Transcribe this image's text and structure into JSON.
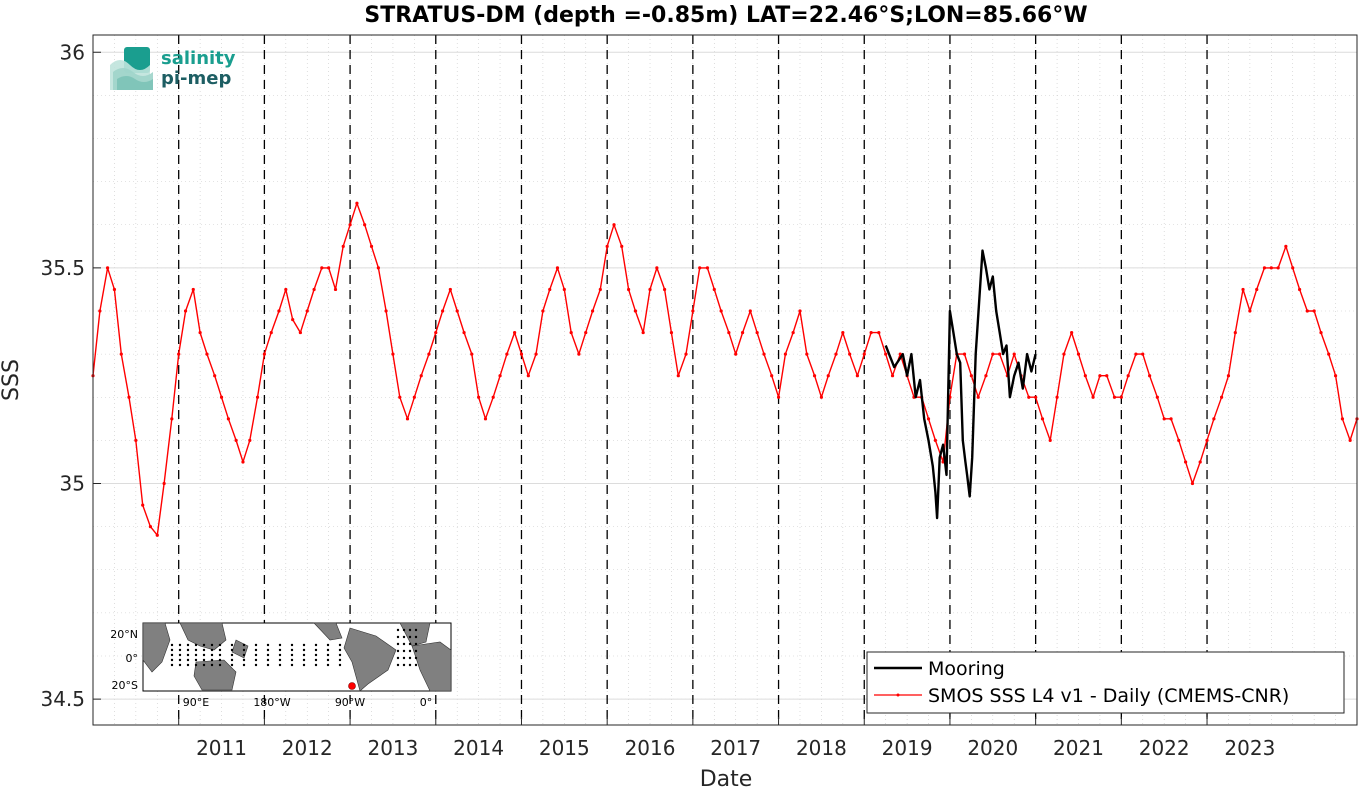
{
  "chart_data": {
    "type": "line",
    "title": "STRATUS-DM (depth =-0.85m) LAT=22.46°S;LON=85.66°W",
    "xlabel": "Date",
    "ylabel": "SSS",
    "xlim": [
      2010.0,
      2024.75
    ],
    "ylim": [
      34.44,
      36.04
    ],
    "yticks": [
      34.5,
      35,
      35.5,
      36
    ],
    "ytick_labels": [
      "34.5",
      "35",
      "35.5",
      "36"
    ],
    "xticks": [
      2011,
      2012,
      2013,
      2014,
      2015,
      2016,
      2017,
      2018,
      2019,
      2020,
      2021,
      2022,
      2023
    ],
    "xtick_labels": [
      "2011",
      "2012",
      "2013",
      "2014",
      "2015",
      "2016",
      "2017",
      "2018",
      "2019",
      "2020",
      "2021",
      "2022",
      "2023"
    ],
    "year_lines": [
      2011,
      2012,
      2013,
      2014,
      2015,
      2016,
      2017,
      2018,
      2019,
      2020,
      2021,
      2022,
      2023
    ],
    "grid": true,
    "legend_position": "bottom-right",
    "series": [
      {
        "name": "Mooring",
        "color": "#000000",
        "x": [
          2019.25,
          2019.35,
          2019.45,
          2019.5,
          2019.55,
          2019.6,
          2019.65,
          2019.7,
          2019.75,
          2019.8,
          2019.83,
          2019.85,
          2019.88,
          2019.92,
          2019.96,
          2020.0,
          2020.04,
          2020.08,
          2020.12,
          2020.15,
          2020.18,
          2020.2,
          2020.23,
          2020.26,
          2020.3,
          2020.34,
          2020.38,
          2020.42,
          2020.46,
          2020.5,
          2020.54,
          2020.58,
          2020.62,
          2020.66,
          2020.7,
          2020.75,
          2020.8,
          2020.85,
          2020.9,
          2020.95,
          2021.0
        ],
        "y": [
          35.32,
          35.27,
          35.3,
          35.25,
          35.3,
          35.2,
          35.24,
          35.15,
          35.1,
          35.04,
          34.98,
          34.92,
          35.06,
          35.09,
          35.02,
          35.4,
          35.35,
          35.3,
          35.28,
          35.1,
          35.05,
          35.02,
          34.97,
          35.06,
          35.3,
          35.42,
          35.54,
          35.5,
          35.45,
          35.48,
          35.4,
          35.35,
          35.3,
          35.32,
          35.2,
          35.25,
          35.28,
          35.22,
          35.3,
          35.26,
          35.3
        ]
      },
      {
        "name": "SMOS SSS L4 v1 - Daily (CMEMS-CNR)",
        "color": "#ff0000",
        "x": [
          2010.0,
          2010.08,
          2010.17,
          2010.25,
          2010.33,
          2010.42,
          2010.5,
          2010.58,
          2010.67,
          2010.75,
          2010.83,
          2010.92,
          2011.0,
          2011.08,
          2011.17,
          2011.25,
          2011.33,
          2011.42,
          2011.5,
          2011.58,
          2011.67,
          2011.75,
          2011.83,
          2011.92,
          2012.0,
          2012.08,
          2012.17,
          2012.25,
          2012.33,
          2012.42,
          2012.5,
          2012.58,
          2012.67,
          2012.75,
          2012.83,
          2012.92,
          2013.0,
          2013.08,
          2013.17,
          2013.25,
          2013.33,
          2013.42,
          2013.5,
          2013.58,
          2013.67,
          2013.75,
          2013.83,
          2013.92,
          2014.0,
          2014.08,
          2014.17,
          2014.25,
          2014.33,
          2014.42,
          2014.5,
          2014.58,
          2014.67,
          2014.75,
          2014.83,
          2014.92,
          2015.0,
          2015.08,
          2015.17,
          2015.25,
          2015.33,
          2015.42,
          2015.5,
          2015.58,
          2015.67,
          2015.75,
          2015.83,
          2015.92,
          2016.0,
          2016.08,
          2016.17,
          2016.25,
          2016.33,
          2016.42,
          2016.5,
          2016.58,
          2016.67,
          2016.75,
          2016.83,
          2016.92,
          2017.0,
          2017.08,
          2017.17,
          2017.25,
          2017.33,
          2017.42,
          2017.5,
          2017.58,
          2017.67,
          2017.75,
          2017.83,
          2017.92,
          2018.0,
          2018.08,
          2018.17,
          2018.25,
          2018.33,
          2018.42,
          2018.5,
          2018.58,
          2018.67,
          2018.75,
          2018.83,
          2018.92,
          2019.0,
          2019.08,
          2019.17,
          2019.25,
          2019.33,
          2019.42,
          2019.5,
          2019.58,
          2019.67,
          2019.75,
          2019.83,
          2019.92,
          2020.0,
          2020.08,
          2020.17,
          2020.25,
          2020.33,
          2020.42,
          2020.5,
          2020.58,
          2020.67,
          2020.75,
          2020.83,
          2020.92,
          2021.0,
          2021.08,
          2021.17,
          2021.25,
          2021.33,
          2021.42,
          2021.5,
          2021.58,
          2021.67,
          2021.75,
          2021.83,
          2021.92,
          2022.0,
          2022.08,
          2022.17,
          2022.25,
          2022.33,
          2022.42,
          2022.5,
          2022.58,
          2022.67,
          2022.75,
          2022.83,
          2022.92,
          2023.0,
          2023.08,
          2023.17,
          2023.25,
          2023.33,
          2023.42,
          2023.5,
          2023.58,
          2023.67,
          2023.75,
          2023.83,
          2023.92,
          2024.0,
          2024.08,
          2024.17,
          2024.25,
          2024.33,
          2024.42,
          2024.5,
          2024.58,
          2024.67,
          2024.75
        ],
        "y": [
          35.25,
          35.4,
          35.5,
          35.45,
          35.3,
          35.2,
          35.1,
          34.95,
          34.9,
          34.88,
          35.0,
          35.15,
          35.3,
          35.4,
          35.45,
          35.35,
          35.3,
          35.25,
          35.2,
          35.15,
          35.1,
          35.05,
          35.1,
          35.2,
          35.3,
          35.35,
          35.4,
          35.45,
          35.38,
          35.35,
          35.4,
          35.45,
          35.5,
          35.5,
          35.45,
          35.55,
          35.6,
          35.65,
          35.6,
          35.55,
          35.5,
          35.4,
          35.3,
          35.2,
          35.15,
          35.2,
          35.25,
          35.3,
          35.35,
          35.4,
          35.45,
          35.4,
          35.35,
          35.3,
          35.2,
          35.15,
          35.2,
          35.25,
          35.3,
          35.35,
          35.3,
          35.25,
          35.3,
          35.4,
          35.45,
          35.5,
          35.45,
          35.35,
          35.3,
          35.35,
          35.4,
          35.45,
          35.55,
          35.6,
          35.55,
          35.45,
          35.4,
          35.35,
          35.45,
          35.5,
          35.45,
          35.35,
          35.25,
          35.3,
          35.4,
          35.5,
          35.5,
          35.45,
          35.4,
          35.35,
          35.3,
          35.35,
          35.4,
          35.35,
          35.3,
          35.25,
          35.2,
          35.3,
          35.35,
          35.4,
          35.3,
          35.25,
          35.2,
          35.25,
          35.3,
          35.35,
          35.3,
          35.25,
          35.3,
          35.35,
          35.35,
          35.3,
          35.25,
          35.3,
          35.25,
          35.2,
          35.2,
          35.15,
          35.1,
          35.05,
          35.2,
          35.3,
          35.3,
          35.25,
          35.2,
          35.25,
          35.3,
          35.3,
          35.25,
          35.3,
          35.25,
          35.2,
          35.2,
          35.15,
          35.1,
          35.2,
          35.3,
          35.35,
          35.3,
          35.25,
          35.2,
          35.25,
          35.25,
          35.2,
          35.2,
          35.25,
          35.3,
          35.3,
          35.25,
          35.2,
          35.15,
          35.15,
          35.1,
          35.05,
          35.0,
          35.05,
          35.1,
          35.15,
          35.2,
          35.25,
          35.35,
          35.45,
          35.4,
          35.45,
          35.5,
          35.5,
          35.5,
          35.55,
          35.5,
          35.45,
          35.4,
          35.4,
          35.35,
          35.3,
          35.25,
          35.15,
          35.1,
          35.15
        ]
      }
    ]
  },
  "logo": {
    "line1": "salinity",
    "line2": "pi-mep"
  },
  "inset_map": {
    "lat_labels": [
      "20°N",
      "0°",
      "20°S"
    ],
    "lon_labels": [
      "90°E",
      "180°W",
      "90°W",
      "0°"
    ]
  }
}
